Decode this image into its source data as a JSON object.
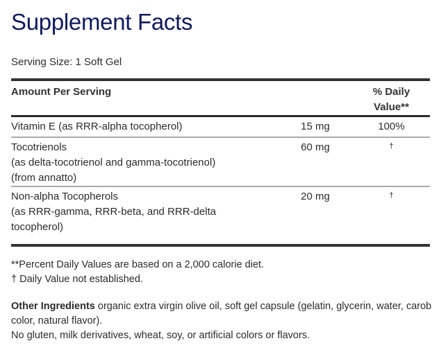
{
  "title": "Supplement Facts",
  "serving_size": "Serving Size: 1 Soft Gel",
  "table": {
    "headers": {
      "amount": "Amount Per Serving",
      "dv_line1": "% Daily",
      "dv_line2": "Value**"
    },
    "rows": [
      {
        "name": "Vitamin E (as RRR-alpha tocopherol)",
        "details": [],
        "amount": "15 mg",
        "dv": "100%"
      },
      {
        "name": "Tocotrienols",
        "details": [
          "(as delta-tocotrienol and gamma-tocotrienol)",
          "(from annatto)"
        ],
        "amount": "60 mg",
        "dv": "†"
      },
      {
        "name": "Non-alpha Tocopherols",
        "details": [
          "(as RRR-gamma, RRR-beta, and RRR-delta",
          "tocopherol)"
        ],
        "amount": "20 mg",
        "dv": "†"
      }
    ]
  },
  "footnotes": {
    "percent_dv": "**Percent Daily Values are based on a 2,000 calorie diet.",
    "not_established": "† Daily Value not established."
  },
  "other_ingredients": {
    "label": "Other Ingredients",
    "text": " organic extra virgin olive oil, soft gel capsule (gelatin, glycerin, water, carob color, natural flavor).",
    "free_from": "No gluten, milk derivatives, wheat, soy, or artificial colors or flavors."
  },
  "colors": {
    "title": "#0f1a5c",
    "rule_thick": "#333333",
    "rule_thin": "#aaaaaa",
    "text": "#2b2b2b"
  }
}
